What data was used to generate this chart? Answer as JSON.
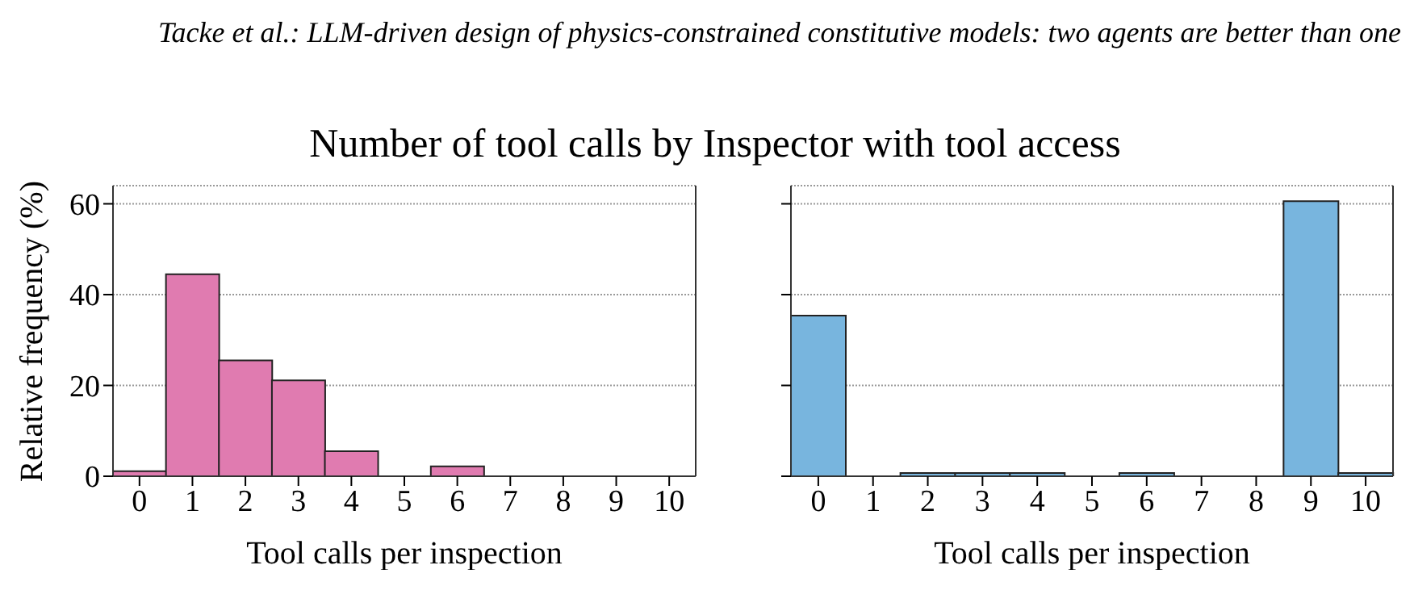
{
  "chart_data": [
    {
      "type": "bar",
      "title": "Number of tool calls by Inspector with tool access",
      "annotations": [
        "Tacke et al.: LLM-driven design of physics-constrained constitutive models: two agents are better than one"
      ],
      "xlabel": "Tool calls per inspection",
      "ylabel": "Relative frequency (%)",
      "categories": [
        "0",
        "1",
        "2",
        "3",
        "4",
        "5",
        "6",
        "7",
        "8",
        "9",
        "10"
      ],
      "series": [
        {
          "color": "#e07bb0",
          "values": [
            1.1,
            44.5,
            25.5,
            21.1,
            5.5,
            0,
            2.2,
            0,
            0,
            0,
            0
          ]
        }
      ],
      "ylim": [
        0,
        64
      ],
      "yticks": [
        0,
        20,
        40,
        60
      ],
      "grid": "y",
      "legend": false
    },
    {
      "type": "bar",
      "xlabel": "Tool calls per inspection",
      "categories": [
        "0",
        "1",
        "2",
        "3",
        "4",
        "5",
        "6",
        "7",
        "8",
        "9",
        "10"
      ],
      "series": [
        {
          "color": "#78b5de",
          "values": [
            35.4,
            0,
            0.7,
            0.7,
            0.7,
            0,
            0.7,
            0,
            0,
            60.6,
            0.7
          ]
        }
      ],
      "ylim": [
        0,
        64
      ],
      "yticks": [
        0,
        20,
        40,
        60
      ],
      "grid": "y",
      "legend": false,
      "tick_labels": "x"
    }
  ]
}
